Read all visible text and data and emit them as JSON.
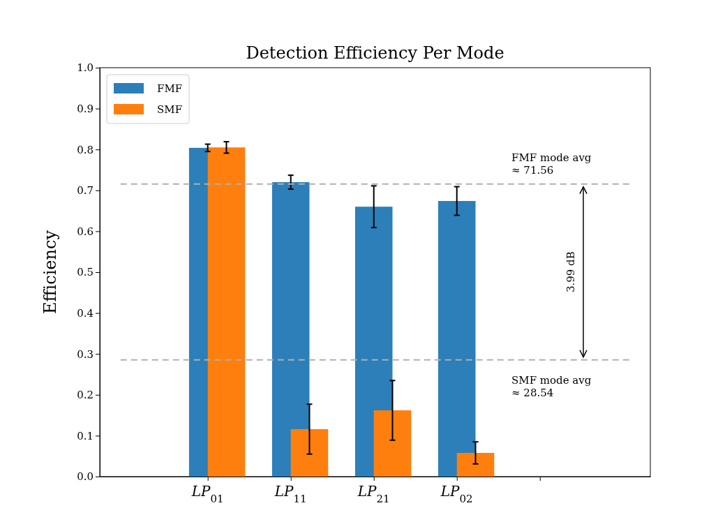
{
  "chart_data": {
    "type": "bar",
    "title": "Detection Efficiency Per Mode",
    "ylabel": "Efficiency",
    "categories": [
      "LP$_{01}$",
      "LP$_{11}$",
      "LP$_{21}$",
      "LP$_{02}$",
      null
    ],
    "series": [
      {
        "name": "FMF",
        "color": "#2c7fb8",
        "values": [
          0.804,
          0.72,
          0.66,
          0.674,
          null
        ],
        "errors": [
          0.009,
          0.017,
          0.051,
          0.035,
          null
        ]
      },
      {
        "name": "SMF",
        "color": "#ff7f0e",
        "values": [
          0.805,
          0.116,
          0.162,
          0.058,
          null
        ],
        "errors": [
          0.014,
          0.061,
          0.073,
          0.027,
          null
        ]
      }
    ],
    "ylim": [
      0,
      1
    ],
    "yticks": [
      {
        "value": 0,
        "label": "0.0"
      },
      0.1,
      0.2,
      0.3,
      0.4,
      0.5,
      0.6,
      0.7,
      0.8,
      0.9,
      {
        "value": 1,
        "label": "1.0"
      }
    ],
    "ref_lines": [
      {
        "axis": "y",
        "value": 0.7156,
        "label": "FMF mode avg\n≈ 71.56",
        "color": "#b0b0b0",
        "line_style": "dashed"
      },
      {
        "axis": "y",
        "value": 0.2854,
        "label": "SMF mode avg\n≈ 28.54",
        "color": "#b0b0b0",
        "line_style": "dashed"
      }
    ],
    "annotations": [
      "3.99 dB"
    ],
    "legend": "top left",
    "grid": false
  }
}
